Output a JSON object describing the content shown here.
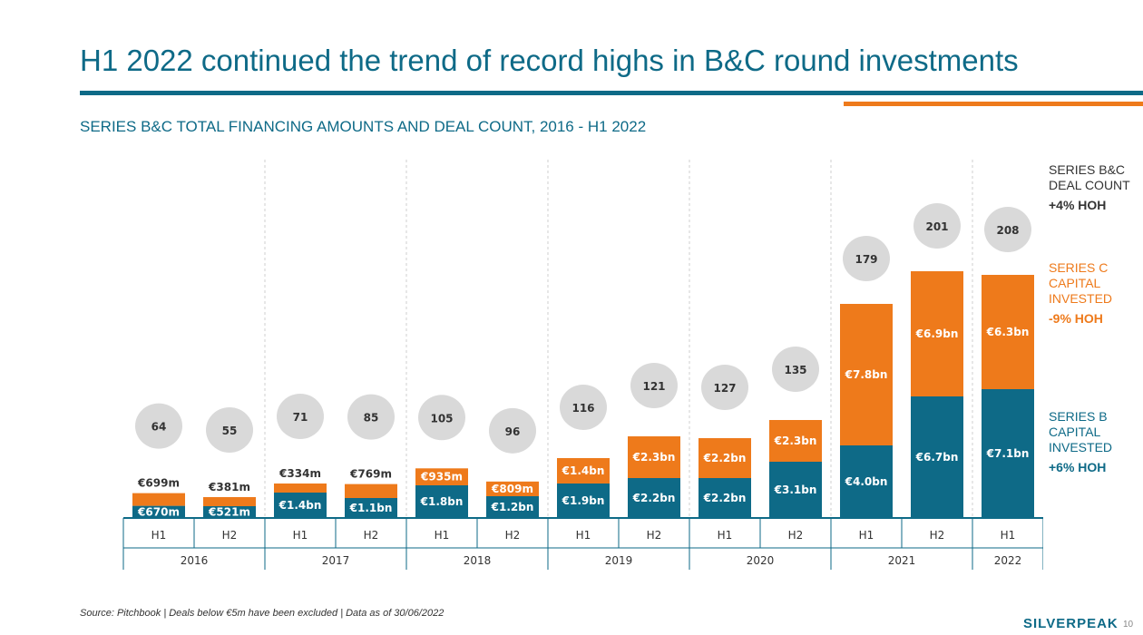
{
  "title": "H1 2022 continued the trend of record highs in B&C round investments",
  "subtitle": "SERIES B&C TOTAL FINANCING AMOUNTS AND DEAL COUNT, 2016 - H1 2022",
  "legend": {
    "deal_count": {
      "label": "SERIES B&C DEAL COUNT",
      "change": "+4% HOH"
    },
    "series_c": {
      "label": "SERIES C CAPITAL INVESTED",
      "change": "-9% HOH"
    },
    "series_b": {
      "label": "SERIES B CAPITAL INVESTED",
      "change": "+6% HOH"
    }
  },
  "footnote": "Source: Pitchbook | Deals below €5m have been excluded | Data as of 30/06/2022",
  "brand": "SILVERPEAK",
  "page_number": "10",
  "colors": {
    "series_b": "#0E6A87",
    "series_c": "#EE7A1B",
    "bubble": "#D9D9D9",
    "title": "#0E6A87"
  },
  "chart_data": {
    "type": "bar",
    "stacked": true,
    "unit": "€m",
    "periods": [
      {
        "half": "H1",
        "year": "2016"
      },
      {
        "half": "H2",
        "year": "2016"
      },
      {
        "half": "H1",
        "year": "2017"
      },
      {
        "half": "H2",
        "year": "2017"
      },
      {
        "half": "H1",
        "year": "2018"
      },
      {
        "half": "H2",
        "year": "2018"
      },
      {
        "half": "H1",
        "year": "2019"
      },
      {
        "half": "H2",
        "year": "2019"
      },
      {
        "half": "H1",
        "year": "2020"
      },
      {
        "half": "H2",
        "year": "2020"
      },
      {
        "half": "H1",
        "year": "2021"
      },
      {
        "half": "H2",
        "year": "2021"
      },
      {
        "half": "H1",
        "year": "2022"
      }
    ],
    "years": [
      "2016",
      "2017",
      "2018",
      "2019",
      "2020",
      "2021",
      "2022"
    ],
    "series": [
      {
        "key": "series_b",
        "values": [
          670,
          521,
          1400,
          1100,
          1800,
          1200,
          1900,
          2200,
          2200,
          3100,
          4000,
          6700,
          7100
        ],
        "labels": [
          "€670m",
          "€521m",
          "€1.4bn",
          "€1.1bn",
          "€1.8bn",
          "€1.2bn",
          "€1.9bn",
          "€2.2bn",
          "€2.2bn",
          "€3.1bn",
          "€4.0bn",
          "€6.7bn",
          "€7.1bn"
        ]
      },
      {
        "key": "series_c",
        "values": [
          699,
          381,
          334,
          769,
          935,
          809,
          1400,
          2300,
          2200,
          2300,
          7800,
          6900,
          6300
        ],
        "labels": [
          "€699m",
          "€381m",
          "€334m",
          "€769m",
          "€935m",
          "€809m",
          "€1.4bn",
          "€2.3bn",
          "€2.2bn",
          "€2.3bn",
          "€7.8bn",
          "€6.9bn",
          "€6.3bn"
        ]
      }
    ],
    "deal_count": [
      64,
      55,
      71,
      85,
      105,
      96,
      116,
      121,
      127,
      135,
      179,
      201,
      208
    ],
    "ylim": [
      0,
      16000
    ]
  }
}
